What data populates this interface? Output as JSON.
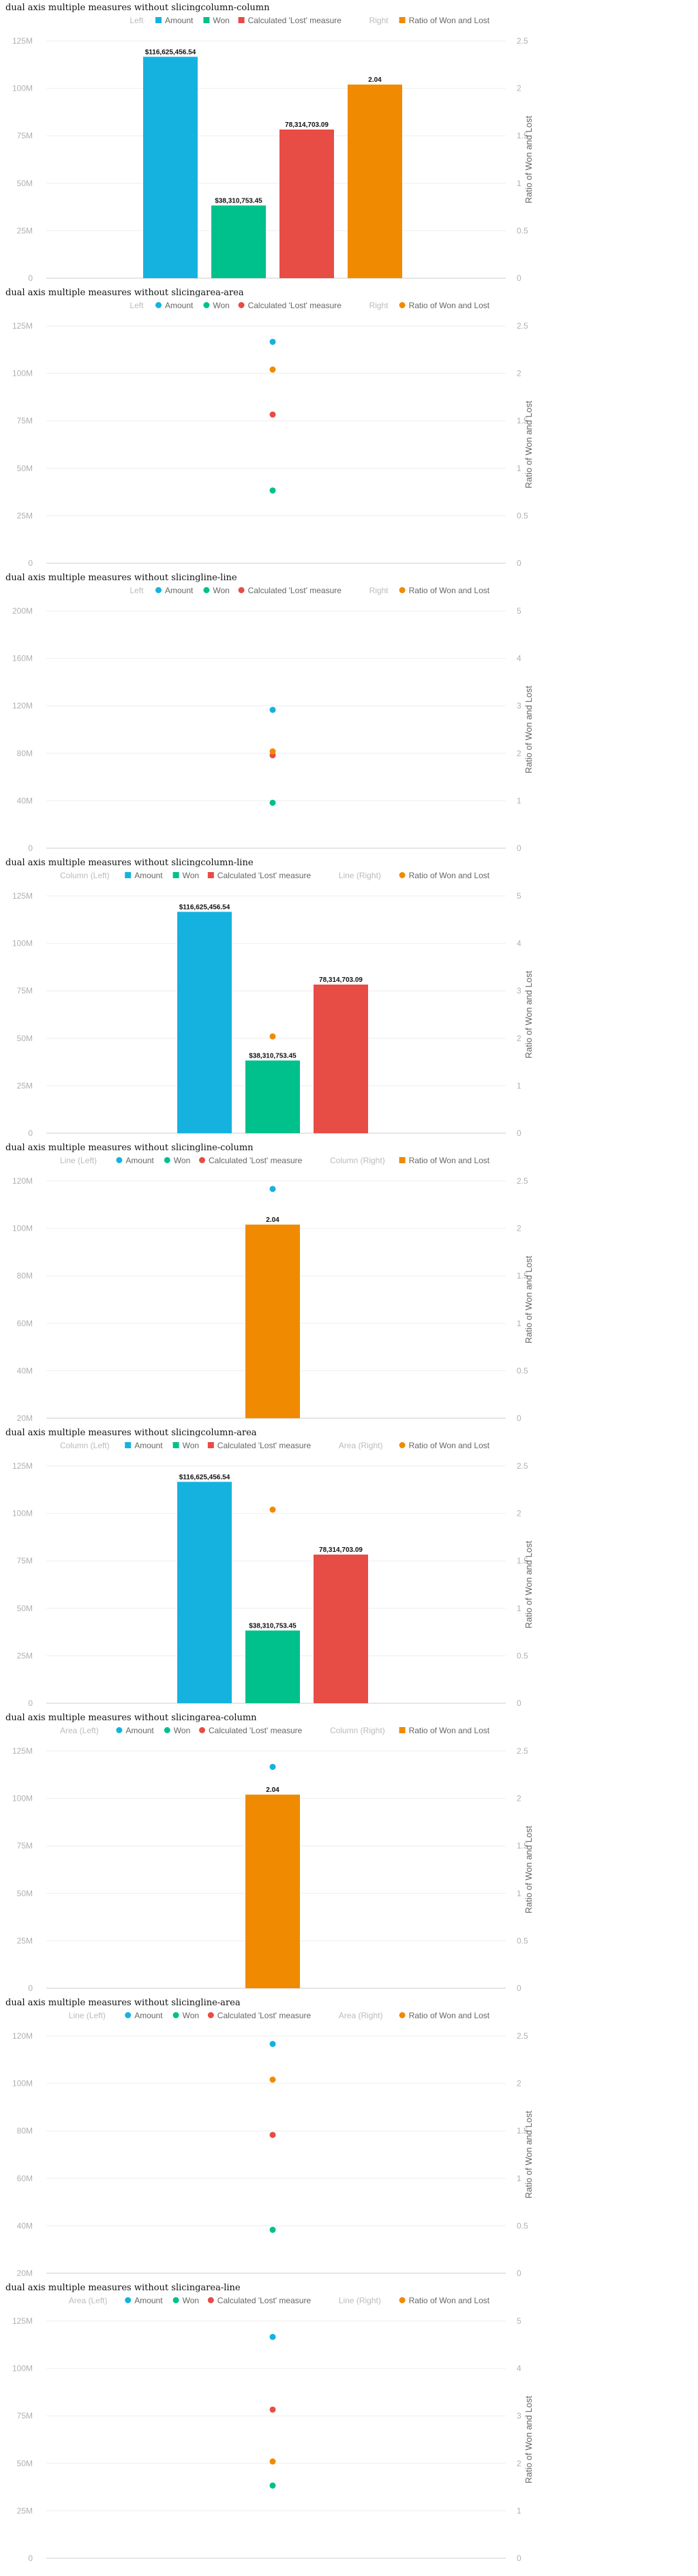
{
  "colors": {
    "amount": "#15b2e0",
    "won": "#00c08b",
    "lost": "#e74c45",
    "ratio": "#f08a00",
    "grid": "#eeeeee",
    "baseline": "#cccccc"
  },
  "chart_data": [
    {
      "title": "dual axis multiple measures without slicingcolumn-column",
      "left_type": "column",
      "right_type": "column",
      "legend_left_label": "Left",
      "legend_right_label": "Right",
      "left_ticks": [
        "125M",
        "100M",
        "75M",
        "50M",
        "25M",
        "0"
      ],
      "ylim_left": [
        0,
        125000000
      ],
      "right_ticks": [
        "2.5",
        "2",
        "1.5",
        "1",
        "0.5",
        "0"
      ],
      "ylim_right": [
        0,
        2.5
      ],
      "ylabel_right": "Ratio of Won and Lost",
      "series": [
        {
          "name": "Amount",
          "axis": "left",
          "marker": "square",
          "value": 116625456.54,
          "label": "$116,625,456.54"
        },
        {
          "name": "Won",
          "axis": "left",
          "marker": "square",
          "value": 38310753.45,
          "label": "$38,310,753.45"
        },
        {
          "name": "Calculated 'Lost' measure",
          "axis": "left",
          "marker": "square",
          "value": 78314703.09,
          "label": "78,314,703.09"
        },
        {
          "name": "Ratio of Won and Lost",
          "axis": "right",
          "marker": "square",
          "value": 2.04,
          "label": "2.04"
        }
      ]
    },
    {
      "title": "dual axis multiple measures without slicingarea-area",
      "left_type": "area",
      "right_type": "area",
      "legend_left_label": "Left",
      "legend_right_label": "Right",
      "left_ticks": [
        "125M",
        "100M",
        "75M",
        "50M",
        "25M",
        "0"
      ],
      "ylim_left": [
        0,
        125000000
      ],
      "right_ticks": [
        "2.5",
        "2",
        "1.5",
        "1",
        "0.5",
        "0"
      ],
      "ylim_right": [
        0,
        2.5
      ],
      "ylabel_right": "Ratio of Won and Lost",
      "series": [
        {
          "name": "Amount",
          "axis": "left",
          "marker": "circle",
          "value": 116625456.54,
          "label": ""
        },
        {
          "name": "Won",
          "axis": "left",
          "marker": "circle",
          "value": 38310753.45,
          "label": ""
        },
        {
          "name": "Calculated 'Lost' measure",
          "axis": "left",
          "marker": "circle",
          "value": 78314703.09,
          "label": ""
        },
        {
          "name": "Ratio of Won and Lost",
          "axis": "right",
          "marker": "circle",
          "value": 2.04,
          "label": ""
        }
      ]
    },
    {
      "title": "dual axis multiple measures without slicingline-line",
      "left_type": "line",
      "right_type": "line",
      "legend_left_label": "Left",
      "legend_right_label": "Right",
      "left_ticks": [
        "200M",
        "160M",
        "120M",
        "80M",
        "40M",
        "0"
      ],
      "ylim_left": [
        0,
        200000000
      ],
      "right_ticks": [
        "5",
        "4",
        "3",
        "2",
        "1",
        "0"
      ],
      "ylim_right": [
        0,
        5
      ],
      "ylabel_right": "Ratio of Won and Lost",
      "series": [
        {
          "name": "Amount",
          "axis": "left",
          "marker": "circle",
          "value": 116625456.54,
          "label": ""
        },
        {
          "name": "Won",
          "axis": "left",
          "marker": "circle",
          "value": 38310753.45,
          "label": ""
        },
        {
          "name": "Calculated 'Lost' measure",
          "axis": "left",
          "marker": "circle",
          "value": 78314703.09,
          "label": ""
        },
        {
          "name": "Ratio of Won and Lost",
          "axis": "right",
          "marker": "circle",
          "value": 2.04,
          "label": ""
        }
      ]
    },
    {
      "title": "dual axis multiple measures without slicingcolumn-line",
      "left_type": "column",
      "right_type": "line",
      "legend_left_label": "Column (Left)",
      "legend_right_label": "Line (Right)",
      "left_ticks": [
        "125M",
        "100M",
        "75M",
        "50M",
        "25M",
        "0"
      ],
      "ylim_left": [
        0,
        125000000
      ],
      "right_ticks": [
        "5",
        "4",
        "3",
        "2",
        "1",
        "0"
      ],
      "ylim_right": [
        0,
        5
      ],
      "ylabel_right": "Ratio of Won and Lost",
      "series": [
        {
          "name": "Amount",
          "axis": "left",
          "marker": "square",
          "value": 116625456.54,
          "label": "$116,625,456.54"
        },
        {
          "name": "Won",
          "axis": "left",
          "marker": "square",
          "value": 38310753.45,
          "label": "$38,310,753.45"
        },
        {
          "name": "Calculated 'Lost' measure",
          "axis": "left",
          "marker": "square",
          "value": 78314703.09,
          "label": "78,314,703.09"
        },
        {
          "name": "Ratio of Won and Lost",
          "axis": "right",
          "marker": "circle",
          "value": 2.04,
          "label": ""
        }
      ]
    },
    {
      "title": "dual axis multiple measures without slicingline-column",
      "left_type": "line",
      "right_type": "column",
      "legend_left_label": "Line (Left)",
      "legend_right_label": "Column (Right)",
      "left_ticks": [
        "120M",
        "100M",
        "80M",
        "60M",
        "40M",
        "20M"
      ],
      "ylim_left": [
        20000000,
        120000000
      ],
      "right_ticks": [
        "2.5",
        "2",
        "1.5",
        "1",
        "0.5",
        "0"
      ],
      "ylim_right": [
        0,
        2.5
      ],
      "ylabel_right": "Ratio of Won and Lost",
      "series": [
        {
          "name": "Amount",
          "axis": "left",
          "marker": "circle",
          "value": 116625456.54,
          "label": ""
        },
        {
          "name": "Won",
          "axis": "left",
          "marker": "circle",
          "value": 38310753.45,
          "label": ""
        },
        {
          "name": "Calculated 'Lost' measure",
          "axis": "left",
          "marker": "circle",
          "value": 78314703.09,
          "label": ""
        },
        {
          "name": "Ratio of Won and Lost",
          "axis": "right",
          "marker": "square",
          "value": 2.04,
          "label": "2.04"
        }
      ]
    },
    {
      "title": "dual axis multiple measures without slicingcolumn-area",
      "left_type": "column",
      "right_type": "area",
      "legend_left_label": "Column (Left)",
      "legend_right_label": "Area (Right)",
      "left_ticks": [
        "125M",
        "100M",
        "75M",
        "50M",
        "25M",
        "0"
      ],
      "ylim_left": [
        0,
        125000000
      ],
      "right_ticks": [
        "2.5",
        "2",
        "1.5",
        "1",
        "0.5",
        "0"
      ],
      "ylim_right": [
        0,
        2.5
      ],
      "ylabel_right": "Ratio of Won and Lost",
      "series": [
        {
          "name": "Amount",
          "axis": "left",
          "marker": "square",
          "value": 116625456.54,
          "label": "$116,625,456.54"
        },
        {
          "name": "Won",
          "axis": "left",
          "marker": "square",
          "value": 38310753.45,
          "label": "$38,310,753.45"
        },
        {
          "name": "Calculated 'Lost' measure",
          "axis": "left",
          "marker": "square",
          "value": 78314703.09,
          "label": "78,314,703.09"
        },
        {
          "name": "Ratio of Won and Lost",
          "axis": "right",
          "marker": "circle",
          "value": 2.04,
          "label": ""
        }
      ]
    },
    {
      "title": "dual axis multiple measures without slicingarea-column",
      "left_type": "area",
      "right_type": "column",
      "legend_left_label": "Area (Left)",
      "legend_right_label": "Column (Right)",
      "left_ticks": [
        "125M",
        "100M",
        "75M",
        "50M",
        "25M",
        "0"
      ],
      "ylim_left": [
        0,
        125000000
      ],
      "right_ticks": [
        "2.5",
        "2",
        "1.5",
        "1",
        "0.5",
        "0"
      ],
      "ylim_right": [
        0,
        2.5
      ],
      "ylabel_right": "Ratio of Won and Lost",
      "series": [
        {
          "name": "Amount",
          "axis": "left",
          "marker": "circle",
          "value": 116625456.54,
          "label": ""
        },
        {
          "name": "Won",
          "axis": "left",
          "marker": "circle",
          "value": 38310753.45,
          "label": ""
        },
        {
          "name": "Calculated 'Lost' measure",
          "axis": "left",
          "marker": "circle",
          "value": 78314703.09,
          "label": ""
        },
        {
          "name": "Ratio of Won and Lost",
          "axis": "right",
          "marker": "square",
          "value": 2.04,
          "label": "2.04"
        }
      ]
    },
    {
      "title": "dual axis multiple measures without slicingline-area",
      "left_type": "line",
      "right_type": "area",
      "legend_left_label": "Line (Left)",
      "legend_right_label": "Area (Right)",
      "left_ticks": [
        "120M",
        "100M",
        "80M",
        "60M",
        "40M",
        "20M"
      ],
      "ylim_left": [
        20000000,
        120000000
      ],
      "right_ticks": [
        "2.5",
        "2",
        "1.5",
        "1",
        "0.5",
        "0"
      ],
      "ylim_right": [
        0,
        2.5
      ],
      "ylabel_right": "Ratio of Won and Lost",
      "series": [
        {
          "name": "Amount",
          "axis": "left",
          "marker": "circle",
          "value": 116625456.54,
          "label": ""
        },
        {
          "name": "Won",
          "axis": "left",
          "marker": "circle",
          "value": 38310753.45,
          "label": ""
        },
        {
          "name": "Calculated 'Lost' measure",
          "axis": "left",
          "marker": "circle",
          "value": 78314703.09,
          "label": ""
        },
        {
          "name": "Ratio of Won and Lost",
          "axis": "right",
          "marker": "circle",
          "value": 2.04,
          "label": ""
        }
      ]
    },
    {
      "title": "dual axis multiple measures without slicingarea-line",
      "left_type": "area",
      "right_type": "line",
      "legend_left_label": "Area (Left)",
      "legend_right_label": "Line (Right)",
      "left_ticks": [
        "125M",
        "100M",
        "75M",
        "50M",
        "25M",
        "0"
      ],
      "ylim_left": [
        0,
        125000000
      ],
      "right_ticks": [
        "5",
        "4",
        "3",
        "2",
        "1",
        "0"
      ],
      "ylim_right": [
        0,
        5
      ],
      "ylabel_right": "Ratio of Won and Lost",
      "series": [
        {
          "name": "Amount",
          "axis": "left",
          "marker": "circle",
          "value": 116625456.54,
          "label": ""
        },
        {
          "name": "Won",
          "axis": "left",
          "marker": "circle",
          "value": 38310753.45,
          "label": ""
        },
        {
          "name": "Calculated 'Lost' measure",
          "axis": "left",
          "marker": "circle",
          "value": 78314703.09,
          "label": ""
        },
        {
          "name": "Ratio of Won and Lost",
          "axis": "right",
          "marker": "circle",
          "value": 2.04,
          "label": ""
        }
      ]
    }
  ]
}
